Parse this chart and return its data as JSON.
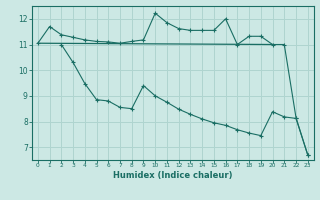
{
  "xlabel": "Humidex (Indice chaleur)",
  "background_color": "#cce8e4",
  "grid_color": "#afd4cf",
  "line_color": "#1a6e64",
  "xlim": [
    -0.5,
    23.5
  ],
  "ylim": [
    6.5,
    12.5
  ],
  "yticks": [
    7,
    8,
    9,
    10,
    11,
    12
  ],
  "xticks": [
    0,
    1,
    2,
    3,
    4,
    5,
    6,
    7,
    8,
    9,
    10,
    11,
    12,
    13,
    14,
    15,
    16,
    17,
    18,
    19,
    20,
    21,
    22,
    23
  ],
  "line1_x": [
    0,
    1,
    2,
    3,
    4,
    5,
    6,
    7,
    8,
    9,
    10,
    11,
    12,
    13,
    14,
    15,
    16,
    17,
    18,
    19,
    20,
    21,
    22,
    23
  ],
  "line1_y": [
    11.05,
    11.7,
    11.38,
    11.28,
    11.18,
    11.12,
    11.1,
    11.05,
    11.12,
    11.18,
    12.22,
    11.85,
    11.62,
    11.55,
    11.55,
    11.55,
    12.0,
    11.0,
    11.32,
    11.32,
    11.0,
    11.0,
    8.15,
    6.7
  ],
  "line2_x": [
    0,
    20
  ],
  "line2_y": [
    11.05,
    11.0
  ],
  "line3_x": [
    2,
    3,
    4,
    5,
    6,
    7,
    8,
    9,
    10,
    11,
    12,
    13,
    14,
    15,
    16,
    17,
    18,
    19,
    20,
    21,
    22,
    23
  ],
  "line3_y": [
    11.0,
    10.3,
    9.48,
    8.85,
    8.8,
    8.55,
    8.5,
    9.4,
    9.0,
    8.75,
    8.48,
    8.28,
    8.1,
    7.95,
    7.85,
    7.68,
    7.55,
    7.45,
    8.38,
    8.18,
    8.12,
    6.7
  ]
}
